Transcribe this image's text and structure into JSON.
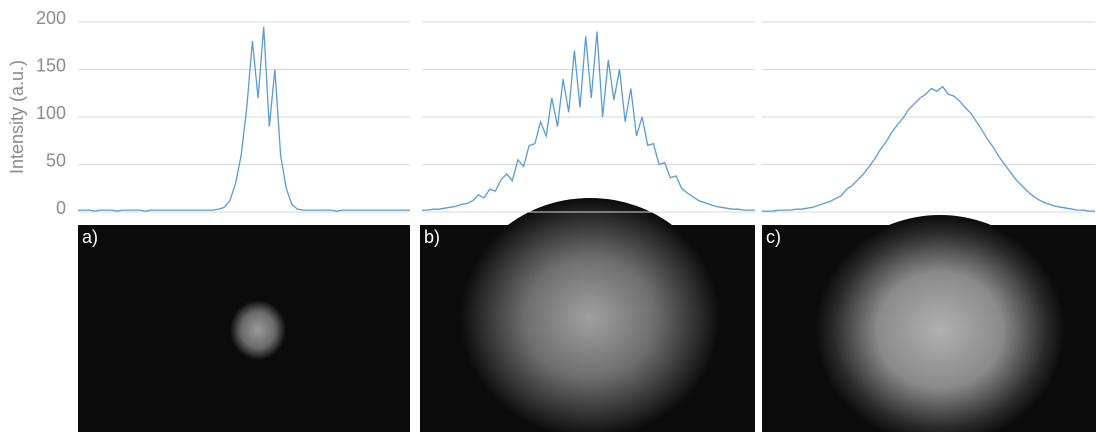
{
  "chart_data": [
    {
      "type": "line",
      "y_label": "Intensity (a.u.)",
      "ylim": [
        0,
        200
      ],
      "yticks": [
        0,
        50,
        100,
        150,
        200
      ],
      "grid": true,
      "tick_labels": true,
      "color": "#5b9bd5",
      "values": [
        2,
        2,
        2,
        1,
        2,
        2,
        2,
        1,
        2,
        2,
        2,
        2,
        1,
        2,
        2,
        2,
        2,
        2,
        2,
        2,
        2,
        2,
        2,
        2,
        2,
        3,
        5,
        12,
        30,
        60,
        110,
        180,
        120,
        195,
        90,
        150,
        60,
        25,
        8,
        3,
        2,
        2,
        2,
        2,
        2,
        2,
        1,
        2,
        2,
        2,
        2,
        2,
        2,
        2,
        2,
        2,
        2,
        2,
        2,
        2
      ]
    },
    {
      "type": "line",
      "ylim": [
        0,
        200
      ],
      "yticks": [
        0,
        50,
        100,
        150,
        200
      ],
      "grid": true,
      "tick_labels": false,
      "color": "#5b9bd5",
      "values": [
        2,
        2,
        3,
        3,
        4,
        5,
        6,
        8,
        9,
        12,
        18,
        15,
        24,
        22,
        34,
        40,
        33,
        55,
        48,
        70,
        72,
        95,
        80,
        120,
        90,
        140,
        105,
        170,
        110,
        185,
        120,
        190,
        100,
        160,
        118,
        150,
        95,
        130,
        80,
        100,
        70,
        72,
        50,
        52,
        36,
        38,
        25,
        20,
        16,
        12,
        10,
        8,
        6,
        5,
        4,
        3,
        3,
        2,
        2,
        2
      ]
    },
    {
      "type": "line",
      "ylim": [
        0,
        200
      ],
      "yticks": [
        0,
        50,
        100,
        150,
        200
      ],
      "grid": true,
      "tick_labels": false,
      "color": "#5b9bd5",
      "values": [
        1,
        1,
        1,
        2,
        2,
        2,
        3,
        3,
        4,
        5,
        7,
        9,
        11,
        14,
        17,
        24,
        28,
        34,
        40,
        48,
        56,
        66,
        74,
        84,
        92,
        99,
        108,
        114,
        120,
        124,
        130,
        127,
        132,
        124,
        122,
        117,
        110,
        104,
        95,
        86,
        76,
        68,
        58,
        50,
        42,
        34,
        28,
        22,
        17,
        13,
        10,
        8,
        6,
        5,
        4,
        3,
        2,
        2,
        1,
        1
      ]
    }
  ],
  "images": {
    "labels": [
      "a)",
      "b)",
      "c)"
    ]
  }
}
